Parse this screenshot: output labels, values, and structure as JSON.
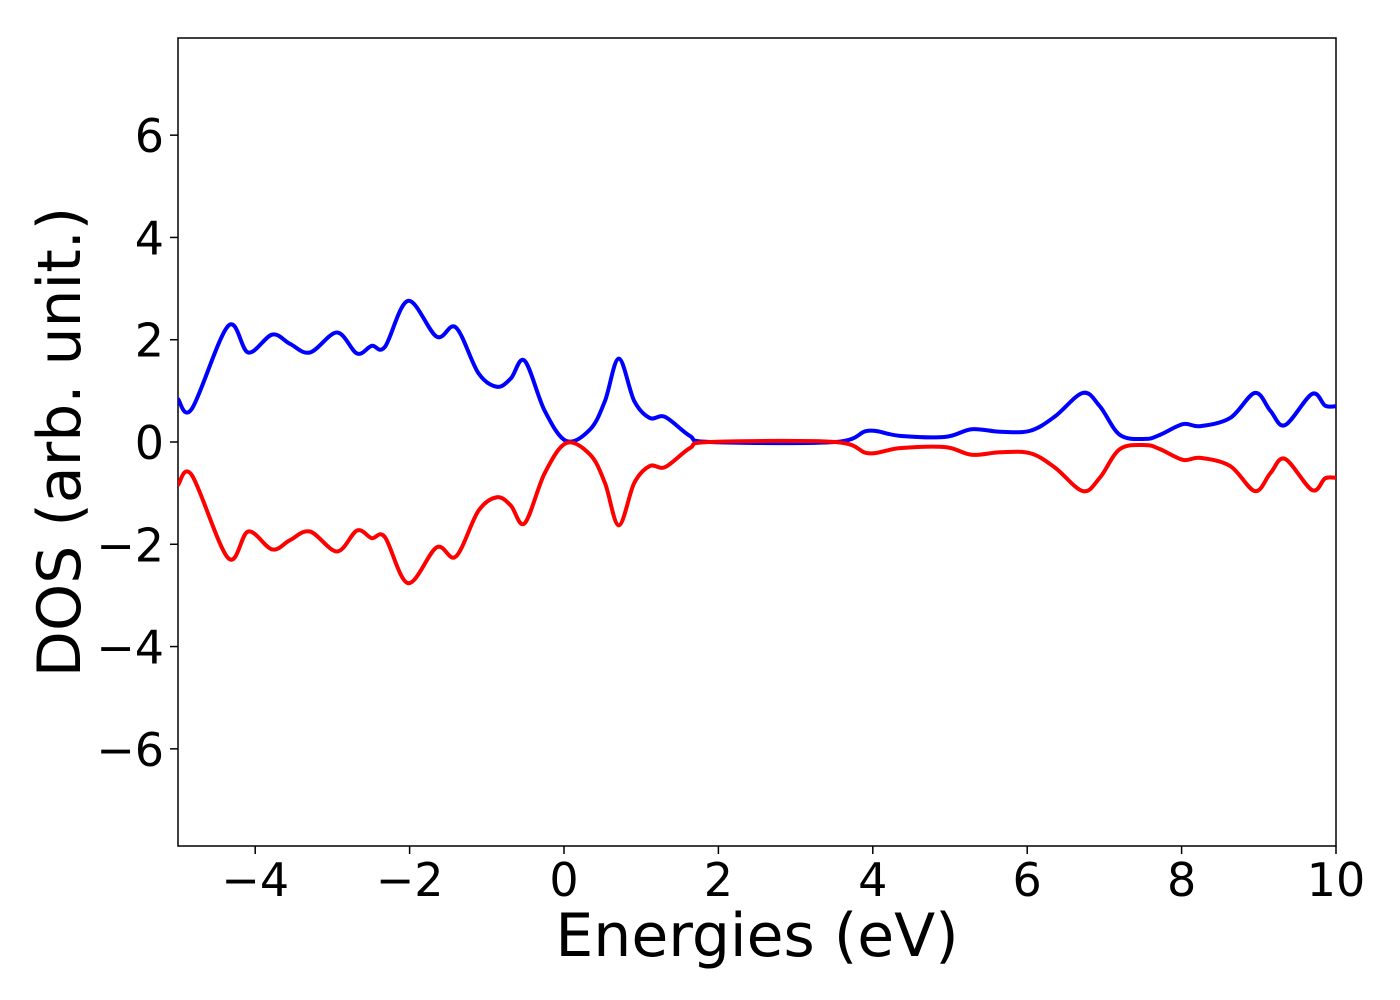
{
  "chart_data": {
    "type": "line",
    "xlabel": "Energies (eV)",
    "ylabel": "DOS (arb. unit.)",
    "x": [
      -5,
      -4.82,
      -4.35,
      -4.09,
      -3.78,
      -3.55,
      -3.29,
      -2.94,
      -2.68,
      -2.49,
      -2.32,
      -2.02,
      -1.65,
      -1.4,
      -1.11,
      -0.87,
      -0.69,
      -0.51,
      -0.25,
      0.03,
      0.34,
      0.53,
      0.71,
      0.91,
      1.11,
      1.31,
      1.63,
      1.89,
      3.51,
      3.94,
      4.35,
      4.94,
      5.28,
      5.65,
      6.04,
      6.36,
      6.72,
      6.94,
      7.2,
      7.53,
      7.72,
      8.02,
      8.24,
      8.63,
      8.95,
      9.15,
      9.34,
      9.69,
      9.86,
      10
    ],
    "series": [
      {
        "color": "#0000ff",
        "values": [
          0.84,
          0.65,
          2.27,
          1.75,
          2.1,
          1.92,
          1.75,
          2.14,
          1.73,
          1.88,
          1.86,
          2.76,
          2.06,
          2.24,
          1.35,
          1.08,
          1.24,
          1.59,
          0.61,
          0.02,
          0.25,
          0.8,
          1.63,
          0.8,
          0.47,
          0.49,
          0.12,
          0,
          0,
          0.22,
          0.12,
          0.1,
          0.25,
          0.2,
          0.22,
          0.5,
          0.96,
          0.7,
          0.14,
          0.06,
          0.14,
          0.35,
          0.31,
          0.47,
          0.96,
          0.61,
          0.33,
          0.94,
          0.71,
          0.7
        ]
      },
      {
        "color": "#ff0000",
        "values": [
          -0.84,
          -0.65,
          -2.27,
          -1.75,
          -2.1,
          -1.92,
          -1.75,
          -2.14,
          -1.73,
          -1.88,
          -1.86,
          -2.76,
          -2.06,
          -2.24,
          -1.35,
          -1.08,
          -1.24,
          -1.59,
          -0.61,
          -0.02,
          -0.25,
          -0.8,
          -1.63,
          -0.8,
          -0.47,
          -0.49,
          -0.12,
          0,
          0,
          -0.22,
          -0.12,
          -0.1,
          -0.25,
          -0.2,
          -0.22,
          -0.5,
          -0.96,
          -0.7,
          -0.14,
          -0.06,
          -0.14,
          -0.35,
          -0.31,
          -0.47,
          -0.96,
          -0.61,
          -0.33,
          -0.94,
          -0.71,
          -0.7
        ]
      }
    ],
    "xlim": [
      -5,
      10
    ],
    "xticks": [
      {
        "value": -4,
        "label": "−4"
      },
      {
        "value": -2,
        "label": "−2"
      },
      0,
      2,
      4,
      6,
      8,
      10
    ],
    "ylim": [
      -7.9,
      7.9
    ],
    "yticks": [
      {
        "value": -6,
        "label": "−6"
      },
      {
        "value": -4,
        "label": "−4"
      },
      {
        "value": -2,
        "label": "−2"
      },
      0,
      2,
      4,
      6
    ],
    "grid": false
  }
}
